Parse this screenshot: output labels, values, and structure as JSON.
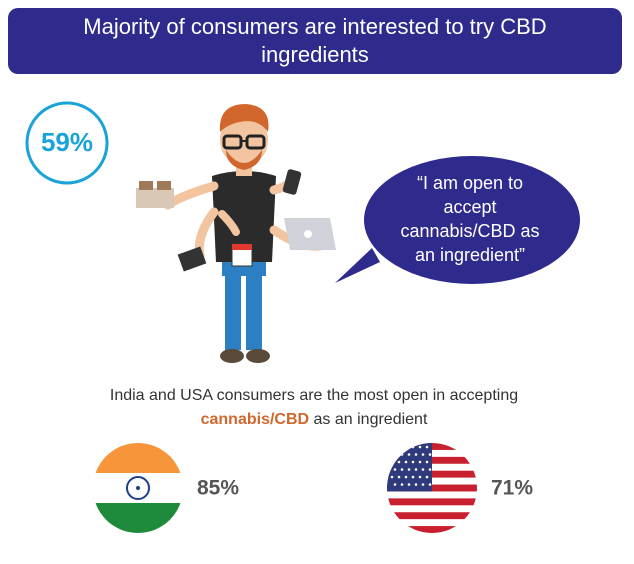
{
  "header": {
    "title_lines": [
      "Majority of consumers are interested to try CBD",
      "ingredients"
    ]
  },
  "headline_stat": "59%",
  "quote": {
    "lines": [
      "“I am open to",
      "accept",
      "cannabis/CBD as",
      "an ingredient”"
    ]
  },
  "subtitle": {
    "line1": "India and USA consumers are the most open in accepting",
    "highlight": "cannabis/CBD",
    "rest": " as an ingredient"
  },
  "countries": [
    {
      "value": "85%"
    },
    {
      "value": "71%"
    }
  ]
}
